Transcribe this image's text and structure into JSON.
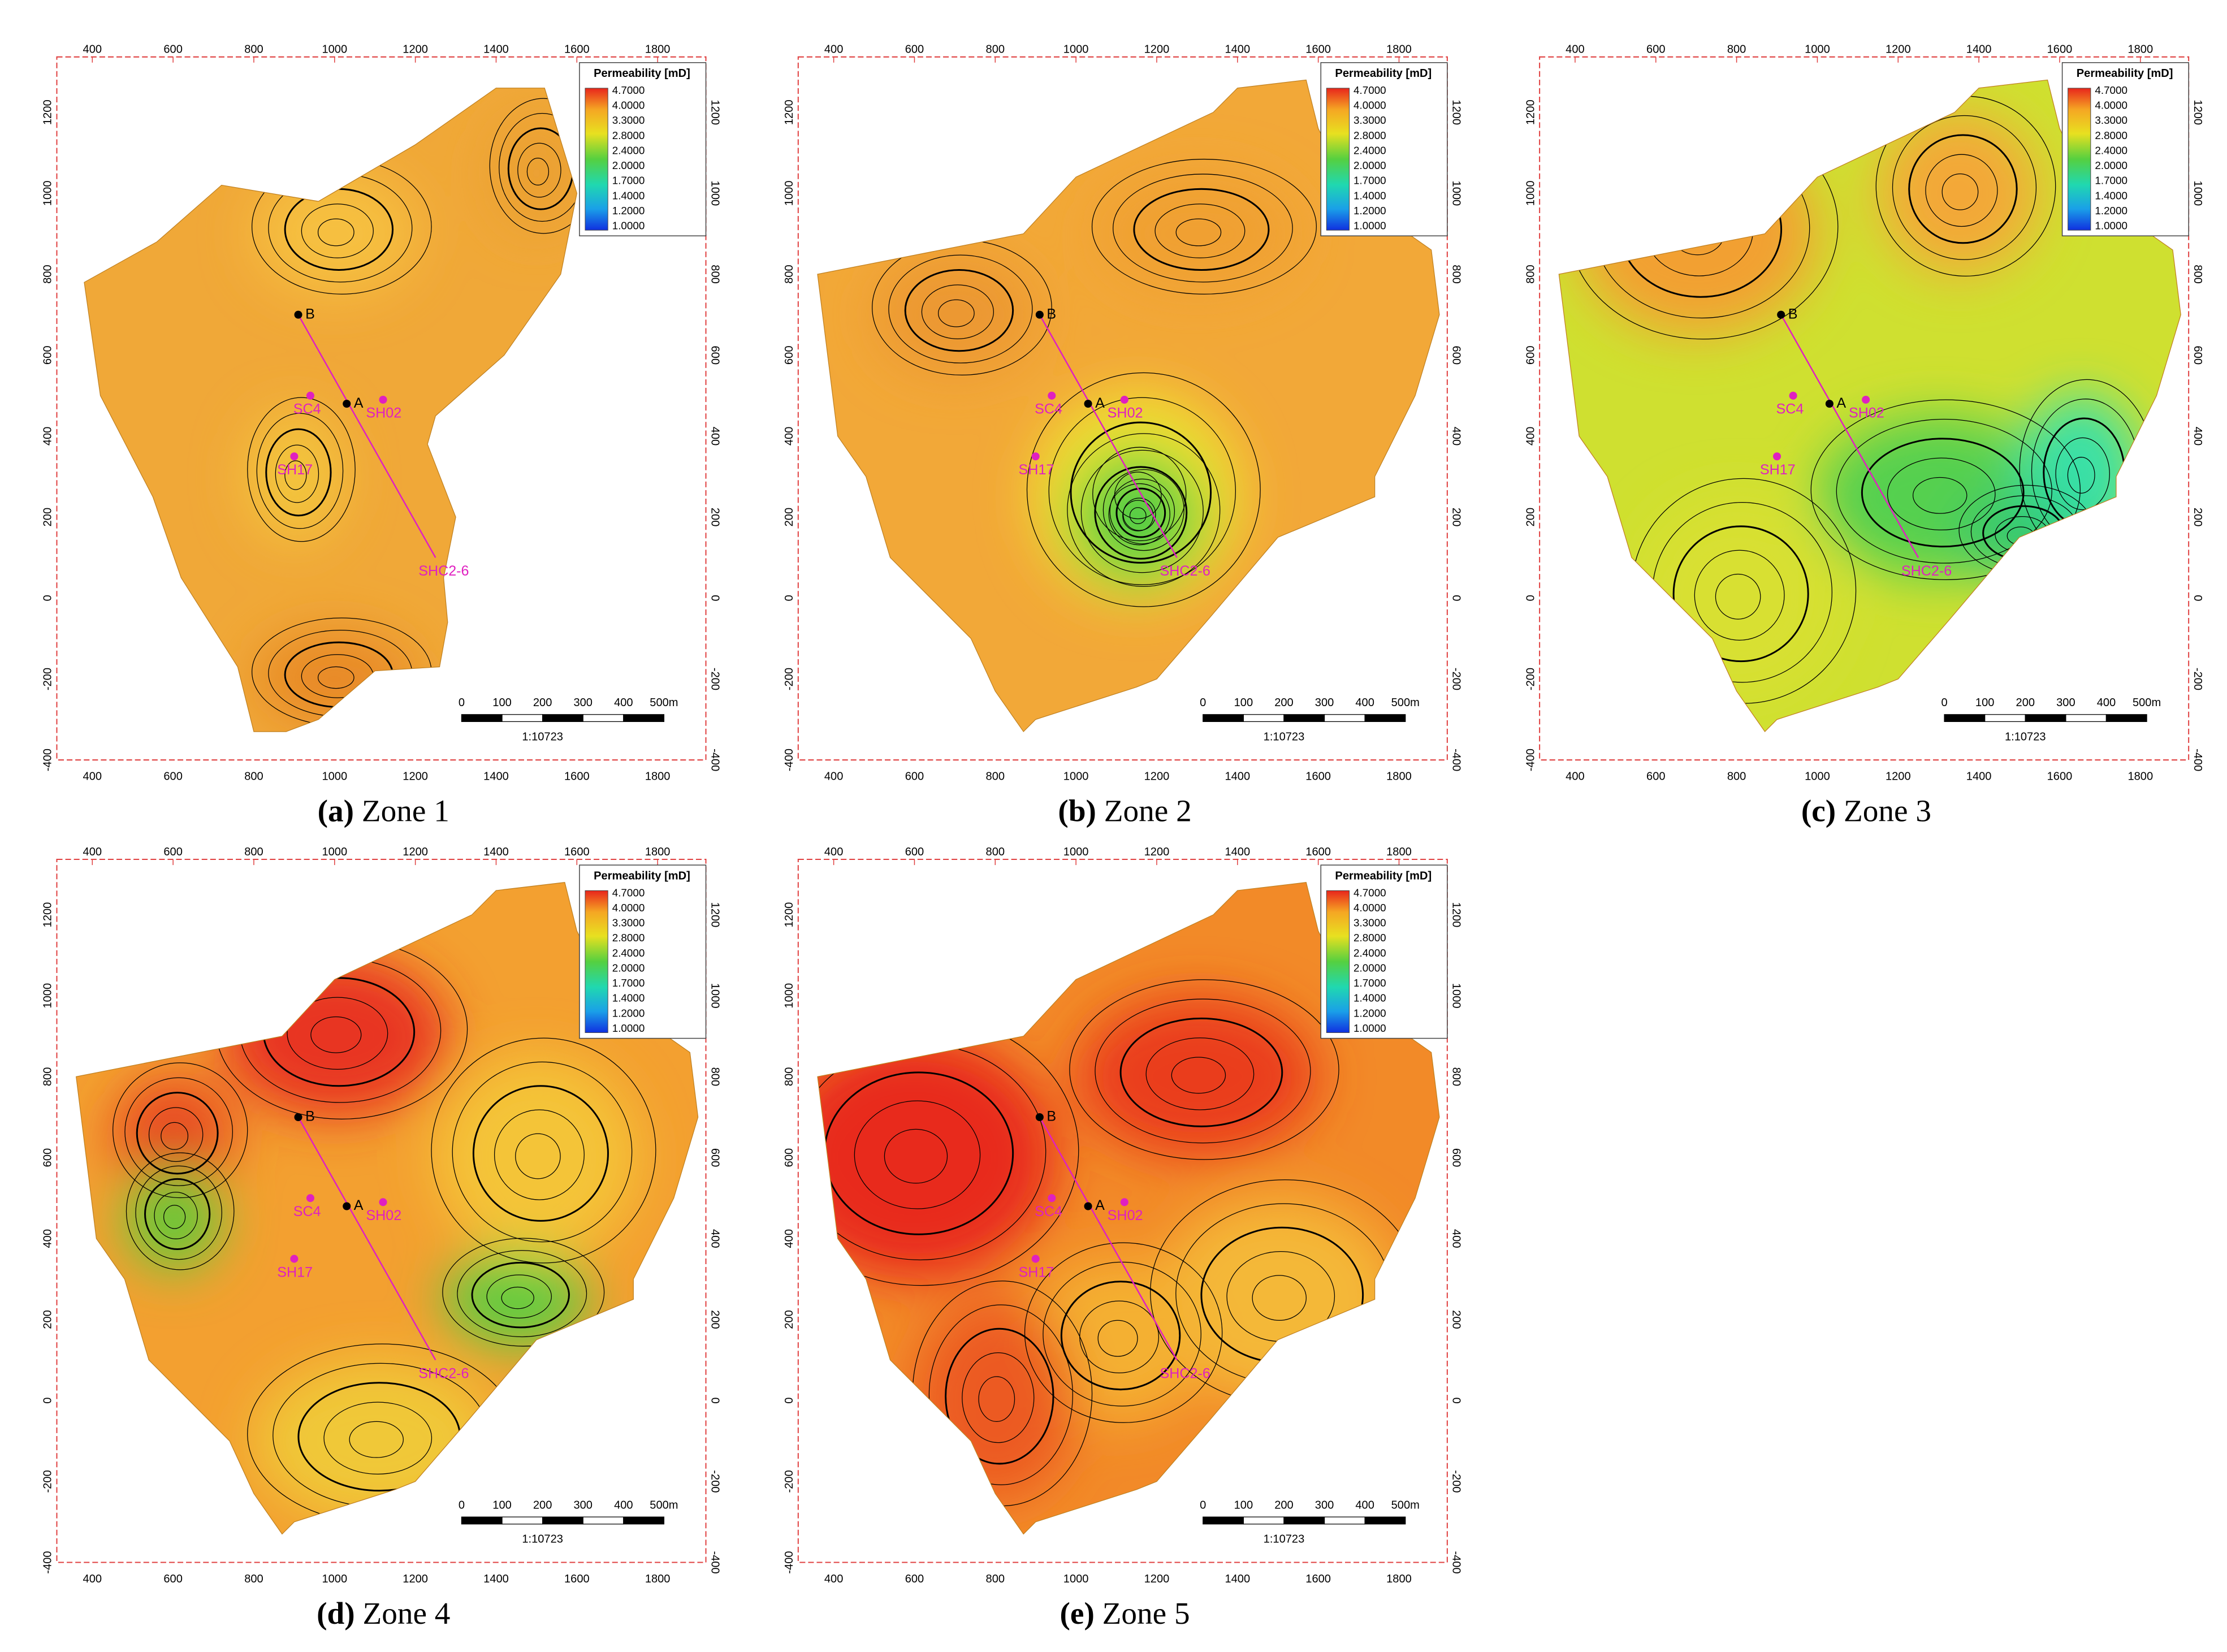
{
  "panels": [
    {
      "label": "(a)",
      "caption": "Zone 1"
    },
    {
      "label": "(b)",
      "caption": "Zone 2"
    },
    {
      "label": "(c)",
      "caption": "Zone 3"
    },
    {
      "label": "(d)",
      "caption": "Zone 4"
    },
    {
      "label": "(e)",
      "caption": "Zone 5"
    }
  ],
  "axes": {
    "xticks": [
      "400",
      "600",
      "800",
      "1000",
      "1200",
      "1400",
      "1600",
      "1800"
    ],
    "yticks": [
      "-400",
      "-200",
      "0",
      "200",
      "400",
      "600",
      "800",
      "1000",
      "1200"
    ]
  },
  "legend": {
    "title": "Permeability [mD]",
    "labels": [
      "4.7000",
      "4.0000",
      "3.3000",
      "2.8000",
      "2.4000",
      "2.0000",
      "1.7000",
      "1.4000",
      "1.2000",
      "1.0000"
    ]
  },
  "wells": [
    "B",
    "A",
    "SC4",
    "SH02",
    "SH17",
    "SHC2-6"
  ],
  "scale_bar": {
    "labels": [
      "0",
      "100",
      "200",
      "300",
      "400",
      "500m"
    ],
    "ratio": "1:10723"
  }
}
